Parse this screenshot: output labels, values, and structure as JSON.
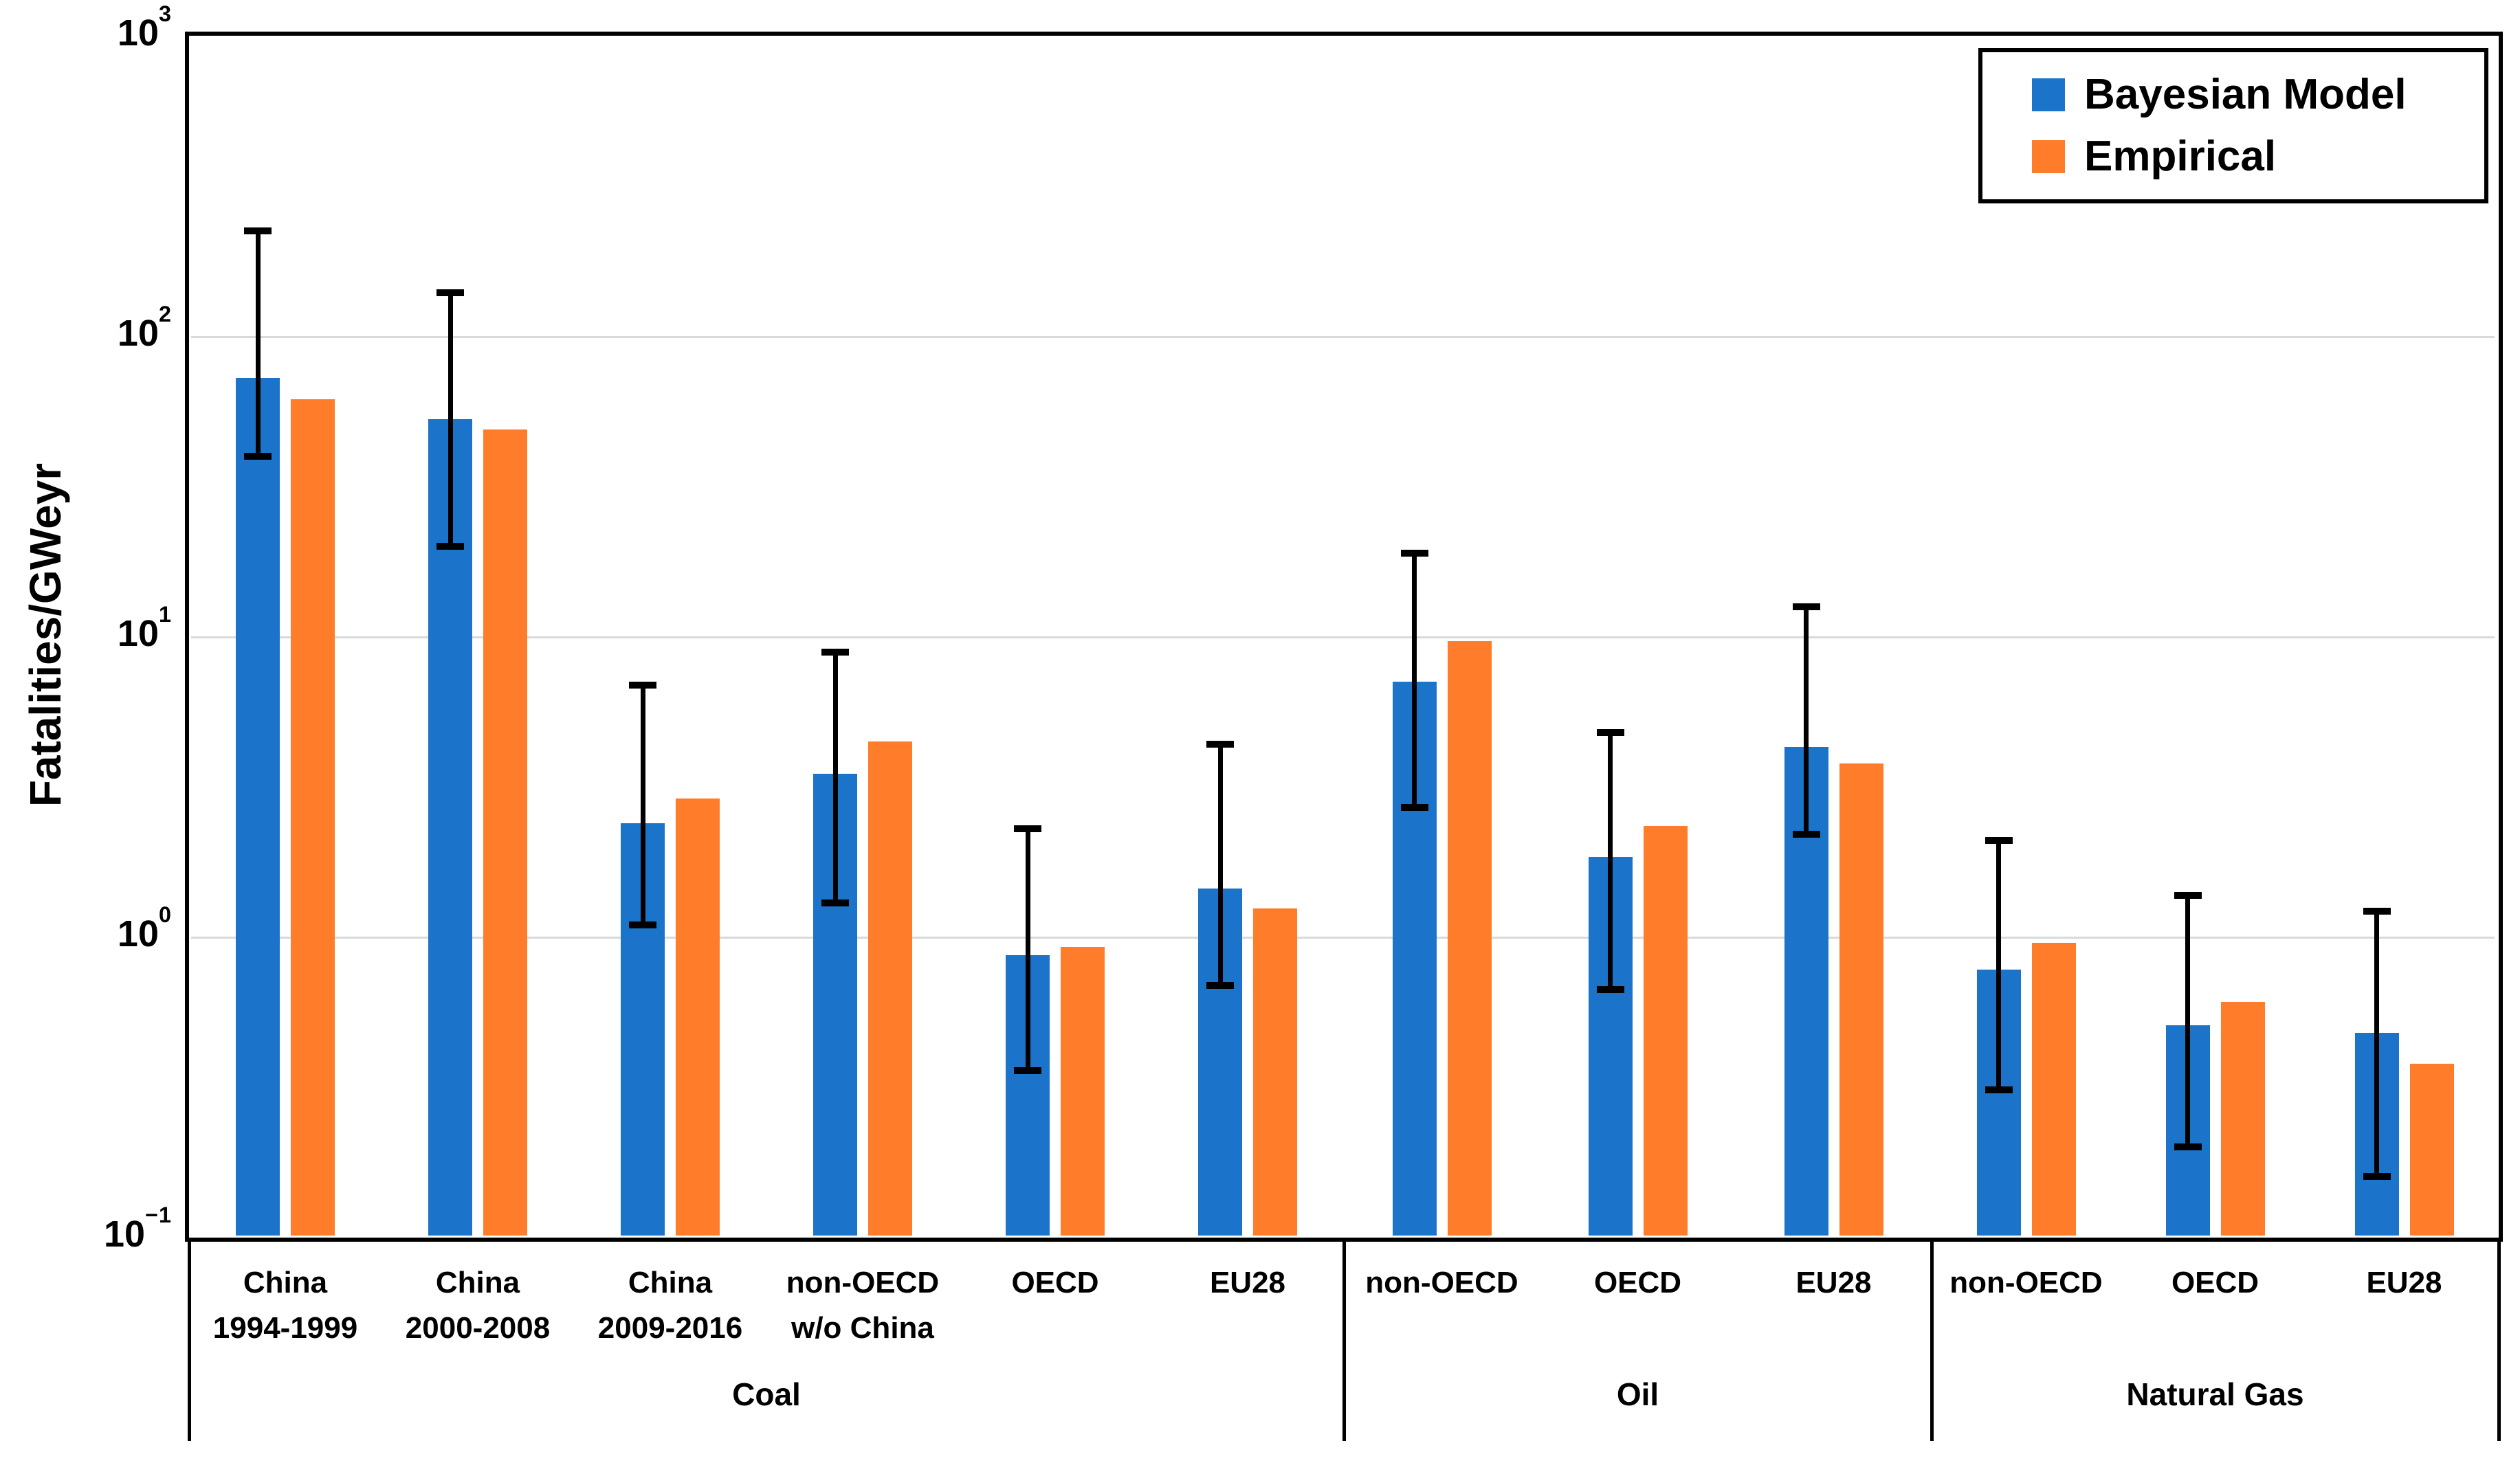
{
  "chart_data": {
    "type": "bar",
    "title": "",
    "ylabel": "Fatalities/GWeyr",
    "xlabel": "",
    "y_scale": "log",
    "ylim": [
      0.1,
      1000
    ],
    "grid": "horizontal-major",
    "legend_position": "top-right-inside",
    "legend": [
      {
        "name": "Bayesian Model",
        "color": "#1B74C9"
      },
      {
        "name": "Empirical",
        "color": "#FF7D2A"
      }
    ],
    "y_axis": {
      "ticks": [
        {
          "exp": "3",
          "value": 1000,
          "gridline": false
        },
        {
          "exp": "2",
          "value": 100,
          "gridline": true
        },
        {
          "exp": "1",
          "value": 10,
          "gridline": true
        },
        {
          "exp": "0",
          "value": 1,
          "gridline": true
        },
        {
          "exp": "−1",
          "value": 0.1,
          "gridline": false
        }
      ]
    },
    "series_note": "bayesian = blue bars with black error bars (err = [low, high]); empirical = orange bars",
    "groups": [
      {
        "label": "Coal",
        "categories": [
          {
            "label": [
              "China",
              "1994-1999"
            ],
            "bayesian": 73,
            "empirical": 62,
            "err": [
              40,
              225
            ]
          },
          {
            "label": [
              "China",
              "2000-2008"
            ],
            "bayesian": 53,
            "empirical": 49,
            "err": [
              20,
              140
            ]
          },
          {
            "label": [
              "China",
              "2009-2016"
            ],
            "bayesian": 2.4,
            "empirical": 2.9,
            "err": [
              1.1,
              6.9
            ]
          },
          {
            "label": [
              "non-OECD",
              "w/o China"
            ],
            "bayesian": 3.5,
            "empirical": 4.5,
            "err": [
              1.3,
              8.9
            ]
          },
          {
            "label": [
              "OECD"
            ],
            "bayesian": 0.87,
            "empirical": 0.93,
            "err": [
              0.36,
              2.3
            ]
          },
          {
            "label": [
              "EU28"
            ],
            "bayesian": 1.45,
            "empirical": 1.25,
            "err": [
              0.69,
              4.4
            ]
          }
        ]
      },
      {
        "label": "Oil",
        "categories": [
          {
            "label": [
              "non-OECD"
            ],
            "bayesian": 7.1,
            "empirical": 9.7,
            "err": [
              2.7,
              19
            ]
          },
          {
            "label": [
              "OECD"
            ],
            "bayesian": 1.85,
            "empirical": 2.35,
            "err": [
              0.67,
              4.8
            ]
          },
          {
            "label": [
              "EU28"
            ],
            "bayesian": 4.3,
            "empirical": 3.8,
            "err": [
              2.2,
              12.6
            ]
          }
        ]
      },
      {
        "label": "Natural Gas",
        "categories": [
          {
            "label": [
              "non-OECD"
            ],
            "bayesian": 0.78,
            "empirical": 0.96,
            "err": [
              0.31,
              2.1
            ]
          },
          {
            "label": [
              "OECD"
            ],
            "bayesian": 0.51,
            "empirical": 0.61,
            "err": [
              0.2,
              1.38
            ]
          },
          {
            "label": [
              "EU28"
            ],
            "bayesian": 0.48,
            "empirical": 0.38,
            "err": [
              0.16,
              1.22
            ]
          }
        ]
      }
    ]
  }
}
